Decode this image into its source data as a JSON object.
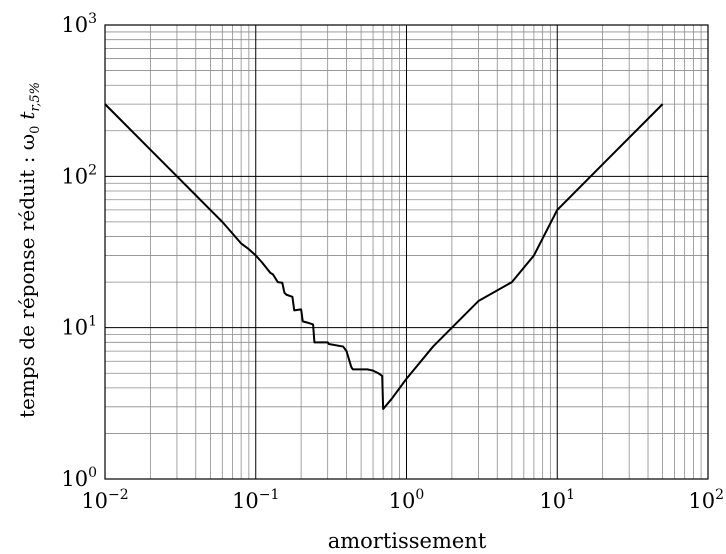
{
  "chart_data": {
    "type": "line",
    "title": "",
    "xlabel": "amortissement",
    "ylabel": "temps de réponse réduit : ω",
    "ylabel_sub0": "0",
    "ylabel_t": "t",
    "ylabel_sub1": "r,5%",
    "x_scale": "log",
    "y_scale": "log",
    "xlim": [
      0.01,
      100
    ],
    "ylim": [
      1,
      1000
    ],
    "grid": true,
    "x_ticks": [
      {
        "value": 0.01,
        "base": "10",
        "exp": "−2"
      },
      {
        "value": 0.1,
        "base": "10",
        "exp": "−1"
      },
      {
        "value": 1,
        "base": "10",
        "exp": "0"
      },
      {
        "value": 10,
        "base": "10",
        "exp": "1"
      },
      {
        "value": 100,
        "base": "10",
        "exp": "2"
      }
    ],
    "y_ticks": [
      {
        "value": 1,
        "base": "10",
        "exp": "0"
      },
      {
        "value": 10,
        "base": "10",
        "exp": "1"
      },
      {
        "value": 100,
        "base": "10",
        "exp": "2"
      },
      {
        "value": 1000,
        "base": "10",
        "exp": "3"
      }
    ],
    "series": [
      {
        "color": "#000000",
        "x": [
          0.01,
          0.02,
          0.03,
          0.04,
          0.05,
          0.06,
          0.07,
          0.08,
          0.09,
          0.1,
          0.11,
          0.125,
          0.13,
          0.14,
          0.15,
          0.155,
          0.16,
          0.175,
          0.18,
          0.2,
          0.205,
          0.22,
          0.24,
          0.245,
          0.3,
          0.305,
          0.38,
          0.4,
          0.43,
          0.44,
          0.55,
          0.6,
          0.65,
          0.69,
          0.7,
          0.8,
          1.0,
          1.5,
          2,
          3,
          5,
          7,
          10,
          20,
          30,
          50
        ],
        "y": [
          300,
          150,
          100,
          75,
          60,
          50,
          42,
          36,
          33,
          30,
          27,
          23,
          22.5,
          20,
          19.8,
          17,
          16.5,
          16,
          13,
          13.2,
          11,
          10.8,
          10.5,
          8,
          8,
          7.8,
          7.5,
          7,
          5.5,
          5.3,
          5.3,
          5.2,
          5.0,
          4.8,
          2.9,
          3.4,
          4.6,
          7.5,
          10,
          15,
          20,
          30,
          60,
          120,
          180,
          300
        ]
      }
    ]
  }
}
